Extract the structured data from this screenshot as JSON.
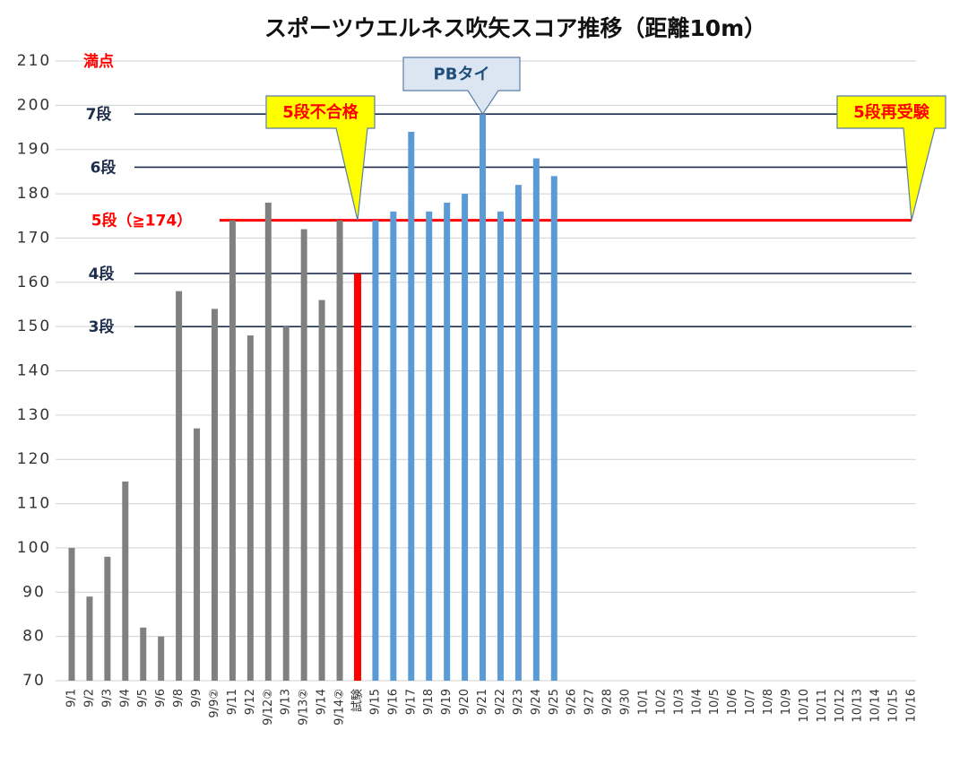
{
  "chart_data": {
    "type": "bar",
    "title": "スポーツウエルネス吹矢スコア推移（距離10m）",
    "categories": [
      "9/1",
      "9/2",
      "9/3",
      "9/4",
      "9/5",
      "9/6",
      "9/8",
      "9/9",
      "9/9②",
      "9/11",
      "9/12",
      "9/12②",
      "9/13",
      "9/13②",
      "9/14",
      "9/14②",
      "試験",
      "9/15",
      "9/16",
      "9/17",
      "9/18",
      "9/19",
      "9/20",
      "9/21",
      "9/22",
      "9/23",
      "9/24",
      "9/25",
      "9/26",
      "9/27",
      "9/28",
      "9/30",
      "10/1",
      "10/2",
      "10/3",
      "10/4",
      "10/5",
      "10/6",
      "10/7",
      "10/8",
      "10/9",
      "10/10",
      "10/11",
      "10/12",
      "10/13",
      "10/14",
      "10/15",
      "10/16"
    ],
    "values": [
      100,
      89,
      98,
      115,
      82,
      80,
      158,
      127,
      154,
      174,
      148,
      178,
      150,
      172,
      156,
      174,
      162,
      174,
      176,
      194,
      176,
      178,
      180,
      198,
      176,
      182,
      188,
      184,
      null,
      null,
      null,
      null,
      null,
      null,
      null,
      null,
      null,
      null,
      null,
      null,
      null,
      null,
      null,
      null,
      null,
      null,
      null,
      null
    ],
    "colors": [
      "#808080",
      "#808080",
      "#808080",
      "#808080",
      "#808080",
      "#808080",
      "#808080",
      "#808080",
      "#808080",
      "#808080",
      "#808080",
      "#808080",
      "#808080",
      "#808080",
      "#808080",
      "#808080",
      "#ff0000",
      "#5b9bd5",
      "#5b9bd5",
      "#5b9bd5",
      "#5b9bd5",
      "#5b9bd5",
      "#5b9bd5",
      "#5b9bd5",
      "#5b9bd5",
      "#5b9bd5",
      "#5b9bd5",
      "#5b9bd5",
      null,
      null,
      null,
      null,
      null,
      null,
      null,
      null,
      null,
      null,
      null,
      null,
      null,
      null,
      null,
      null,
      null,
      null,
      null,
      null
    ],
    "ylim": [
      70,
      210
    ],
    "yticks": [
      70,
      80,
      90,
      100,
      110,
      120,
      130,
      140,
      150,
      160,
      170,
      180,
      190,
      200,
      210
    ],
    "grid": true,
    "reference_lines": [
      {
        "label": "満点",
        "value": 210,
        "color": "#ff0000",
        "line": false
      },
      {
        "label": "7段",
        "value": 198,
        "color": "#1f2d4d",
        "line": true
      },
      {
        "label": "6段",
        "value": 186,
        "color": "#1f2d4d",
        "line": true
      },
      {
        "label": "5段（≧174）",
        "value": 174,
        "color": "#ff0000",
        "line": true
      },
      {
        "label": "4段",
        "value": 162,
        "color": "#1f2d4d",
        "line": true
      },
      {
        "label": "3段",
        "value": 150,
        "color": "#1f2d4d",
        "line": true
      }
    ],
    "annotations": [
      {
        "text": "5段不合格",
        "category": "試験",
        "value": 174,
        "fill": "#ffff00",
        "color": "#ff0000"
      },
      {
        "text": "PBタイ",
        "category": "9/21",
        "value": 198,
        "fill": "#dce6f2",
        "color": "#1f4e79"
      },
      {
        "text": "5段再受験",
        "category": "10/16",
        "value": 174,
        "fill": "#ffff00",
        "color": "#ff0000"
      }
    ]
  }
}
